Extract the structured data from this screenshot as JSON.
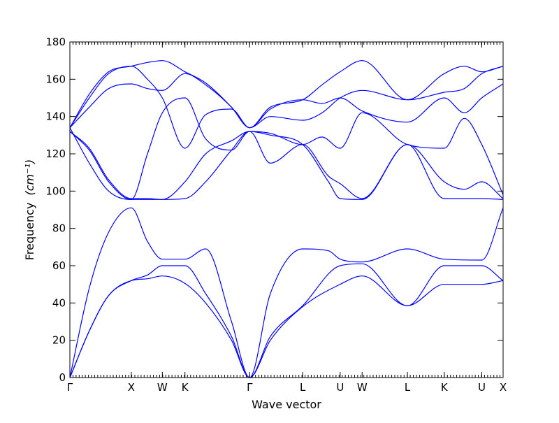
{
  "chart_data": {
    "type": "line",
    "xlabel": "Wave vector",
    "ylabel": "Frequency",
    "ylabel_unit": "(cm⁻¹)",
    "ylim": [
      0,
      180
    ],
    "yticks": [
      0,
      20,
      40,
      60,
      80,
      100,
      120,
      140,
      160,
      180
    ],
    "xlim": [
      0,
      6.7
    ],
    "high_symmetry_points": [
      {
        "label": "Γ",
        "x": 0.0
      },
      {
        "label": "X",
        "x": 0.95
      },
      {
        "label": "W",
        "x": 1.43
      },
      {
        "label": "K",
        "x": 1.78
      },
      {
        "label": "Γ",
        "x": 2.78
      },
      {
        "label": "L",
        "x": 3.6
      },
      {
        "label": "U",
        "x": 4.18
      },
      {
        "label": "W",
        "x": 4.52
      },
      {
        "label": "L",
        "x": 5.22
      },
      {
        "label": "K",
        "x": 5.79
      },
      {
        "label": "U",
        "x": 6.37
      },
      {
        "label": "X",
        "x": 6.7
      }
    ],
    "color": "#0000ff",
    "series": [
      {
        "x": [
          0,
          0.3,
          0.6,
          0.95,
          1.2,
          1.43,
          1.78,
          2.1,
          2.5,
          2.78,
          3.1,
          3.6,
          4.18,
          4.52,
          5.22,
          5.79,
          6.37,
          6.7
        ],
        "y": [
          0,
          25,
          44,
          52,
          53,
          54.5,
          50.5,
          40,
          20,
          0,
          20,
          38,
          50,
          54.5,
          38.5,
          50,
          50,
          52
        ]
      },
      {
        "x": [
          0,
          0.3,
          0.6,
          0.95,
          1.2,
          1.43,
          1.78,
          2.1,
          2.5,
          2.78,
          3.1,
          3.6,
          4.18,
          4.52,
          5.22,
          5.79,
          6.37,
          6.7
        ],
        "y": [
          0,
          25,
          44,
          52,
          55,
          60,
          60,
          45,
          22,
          0,
          22,
          38.5,
          60,
          61,
          38.5,
          60,
          60,
          52
        ]
      },
      {
        "x": [
          0,
          0.3,
          0.6,
          0.95,
          1.2,
          1.43,
          1.78,
          2.1,
          2.5,
          2.78,
          3.1,
          3.6,
          4.0,
          4.18,
          4.52,
          5.22,
          5.79,
          6.37,
          6.7
        ],
        "y": [
          0,
          48,
          78,
          91,
          73,
          63.5,
          63.5,
          69,
          30,
          0,
          45,
          69,
          68,
          63.5,
          62,
          69,
          63.5,
          63,
          91
        ]
      },
      {
        "x": [
          0,
          0.3,
          0.6,
          0.95,
          1.2,
          1.43,
          1.78,
          2.1,
          2.5,
          2.78,
          3.1,
          3.6,
          4.0,
          4.18,
          4.52,
          5.22,
          5.79,
          6.37,
          6.7
        ],
        "y": [
          132,
          122,
          105,
          95.5,
          95.5,
          95.5,
          96,
          105,
          122,
          132,
          130,
          125,
          105,
          96,
          95.5,
          125,
          96,
          96,
          95.5
        ]
      },
      {
        "x": [
          0,
          0.3,
          0.6,
          0.95,
          1.2,
          1.43,
          1.78,
          2.1,
          2.5,
          2.78,
          3.1,
          3.6,
          4.0,
          4.18,
          4.52,
          5.22,
          5.79,
          6.1,
          6.37,
          6.7
        ],
        "y": [
          132,
          123,
          106,
          96,
          96,
          95.5,
          105,
          120,
          127,
          132,
          115,
          125,
          108,
          104,
          96,
          125,
          105,
          101,
          105,
          96
        ]
      },
      {
        "x": [
          0,
          0.3,
          0.6,
          0.95,
          1.2,
          1.43,
          1.78,
          2.1,
          2.5,
          2.78,
          3.1,
          3.6,
          3.9,
          4.18,
          4.52,
          5.22,
          5.79,
          6.1,
          6.37,
          6.7
        ],
        "y": [
          134,
          115,
          100,
          95.5,
          120,
          142,
          150,
          128,
          122,
          132,
          131,
          125,
          129,
          123,
          142,
          125,
          123,
          139,
          125,
          98
        ]
      },
      {
        "x": [
          0,
          0.3,
          0.6,
          0.95,
          1.2,
          1.43,
          1.78,
          2.1,
          2.5,
          2.78,
          3.1,
          3.6,
          3.9,
          4.18,
          4.52,
          5.22,
          5.79,
          6.1,
          6.37,
          6.7
        ],
        "y": [
          134,
          145,
          155,
          157.5,
          155,
          154,
          163,
          157,
          145,
          134,
          144,
          149,
          147,
          150,
          143,
          137,
          150,
          142,
          150,
          157.5
        ]
      },
      {
        "x": [
          0,
          0.3,
          0.6,
          0.95,
          1.2,
          1.43,
          1.78,
          2.1,
          2.5,
          2.78,
          3.1,
          3.6,
          3.9,
          4.18,
          4.52,
          5.22,
          5.79,
          6.1,
          6.37,
          6.7
        ],
        "y": [
          134,
          150,
          163,
          167,
          160,
          150,
          123,
          141,
          144,
          134,
          140,
          138,
          142,
          150,
          154,
          149,
          153,
          155,
          163,
          167
        ]
      },
      {
        "x": [
          0,
          0.3,
          0.6,
          0.95,
          1.2,
          1.43,
          1.78,
          2.1,
          2.5,
          2.78,
          3.1,
          3.6,
          3.9,
          4.18,
          4.52,
          5.22,
          5.79,
          6.1,
          6.37,
          6.7
        ],
        "y": [
          134,
          152,
          164,
          167,
          169,
          170,
          164,
          158,
          145,
          134,
          145,
          149,
          157,
          164,
          170,
          149,
          163,
          167,
          164,
          167
        ]
      }
    ]
  }
}
